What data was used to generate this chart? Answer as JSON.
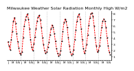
{
  "title": "Milwaukee Weather Solar Radiation Monthly High W/m2",
  "ylim": [
    50,
    850
  ],
  "background": "#ffffff",
  "line_color": "#ff0000",
  "dot_color": "#000000",
  "grid_color": "#888888",
  "title_fontsize": 4.5,
  "tick_fontsize": 3.2,
  "data": [
    350,
    280,
    220,
    380,
    520,
    680,
    740,
    650,
    480,
    350,
    250,
    160,
    140,
    180,
    420,
    600,
    700,
    760,
    800,
    720,
    560,
    380,
    260,
    200,
    320,
    430,
    560,
    680,
    750,
    780,
    700,
    580,
    420,
    300,
    200,
    160,
    180,
    260,
    340,
    460,
    560,
    620,
    580,
    480,
    360,
    240,
    160,
    120,
    140,
    200,
    360,
    520,
    660,
    720,
    680,
    580,
    420,
    280,
    180,
    130,
    150,
    220,
    380,
    540,
    680,
    760,
    800,
    720,
    560,
    380,
    240,
    160,
    200,
    300,
    460,
    620,
    740,
    800,
    820,
    760,
    600,
    420,
    280,
    180,
    200,
    280,
    420,
    580,
    680,
    720,
    680,
    580,
    420,
    280,
    180,
    140
  ],
  "vgrid_positions": [
    12,
    24,
    36,
    48,
    60,
    72,
    84
  ],
  "num_years": 8,
  "ytick_vals": [
    100,
    200,
    300,
    400,
    500,
    600,
    700,
    800
  ],
  "ytick_labels": [
    "1",
    "2",
    "3",
    "4",
    "5",
    "6",
    "7",
    "8"
  ]
}
